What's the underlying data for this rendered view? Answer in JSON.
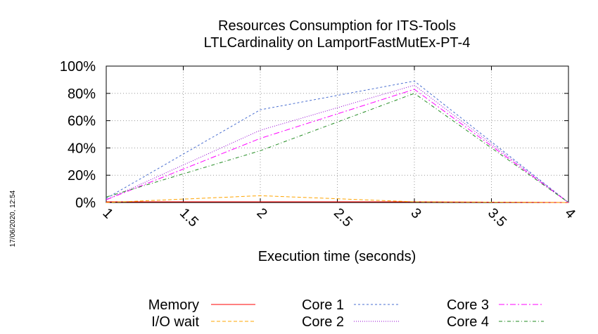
{
  "chart_data": {
    "type": "line",
    "title": [
      "Resources Consumption for ITS-Tools",
      "LTLCardinality on LamportFastMutEx-PT-4"
    ],
    "xlabel": "Execution time (seconds)",
    "ylabel": "",
    "xlim": [
      1,
      4
    ],
    "ylim": [
      0,
      100
    ],
    "xticks": [
      "1",
      "1.5",
      "2",
      "2.5",
      "3",
      "3.5",
      "4"
    ],
    "yticks": [
      "0%",
      "20%",
      "40%",
      "60%",
      "80%",
      "100%"
    ],
    "grid": true,
    "legend_position": "bottom",
    "timestamp": "17/06/2020, 12:54",
    "series": [
      {
        "name": "Memory",
        "color": "#ff0000",
        "dash": "",
        "x": [
          1,
          2,
          3,
          4
        ],
        "values": [
          0.5,
          0.5,
          0.5,
          0
        ]
      },
      {
        "name": "I/O wait",
        "color": "#ffa500",
        "dash": "5,3",
        "x": [
          1,
          2,
          3,
          4
        ],
        "values": [
          0,
          5,
          0.5,
          0
        ]
      },
      {
        "name": "Core 1",
        "color": "#4a6fd0",
        "dash": "3,3",
        "x": [
          1,
          2,
          3,
          4
        ],
        "values": [
          3,
          68,
          89,
          0
        ]
      },
      {
        "name": "Core 2",
        "color": "#9400d3",
        "dash": "1,2",
        "x": [
          1,
          2,
          3,
          4
        ],
        "values": [
          2,
          53,
          86,
          0
        ]
      },
      {
        "name": "Core 3",
        "color": "#ff00ff",
        "dash": "8,3,2,3",
        "x": [
          1,
          2,
          3,
          4
        ],
        "values": [
          2,
          47,
          83,
          0
        ]
      },
      {
        "name": "Core 4",
        "color": "#228b22",
        "dash": "5,3,1,3",
        "x": [
          1,
          2,
          3,
          4
        ],
        "values": [
          4,
          38,
          80,
          0
        ]
      }
    ]
  }
}
